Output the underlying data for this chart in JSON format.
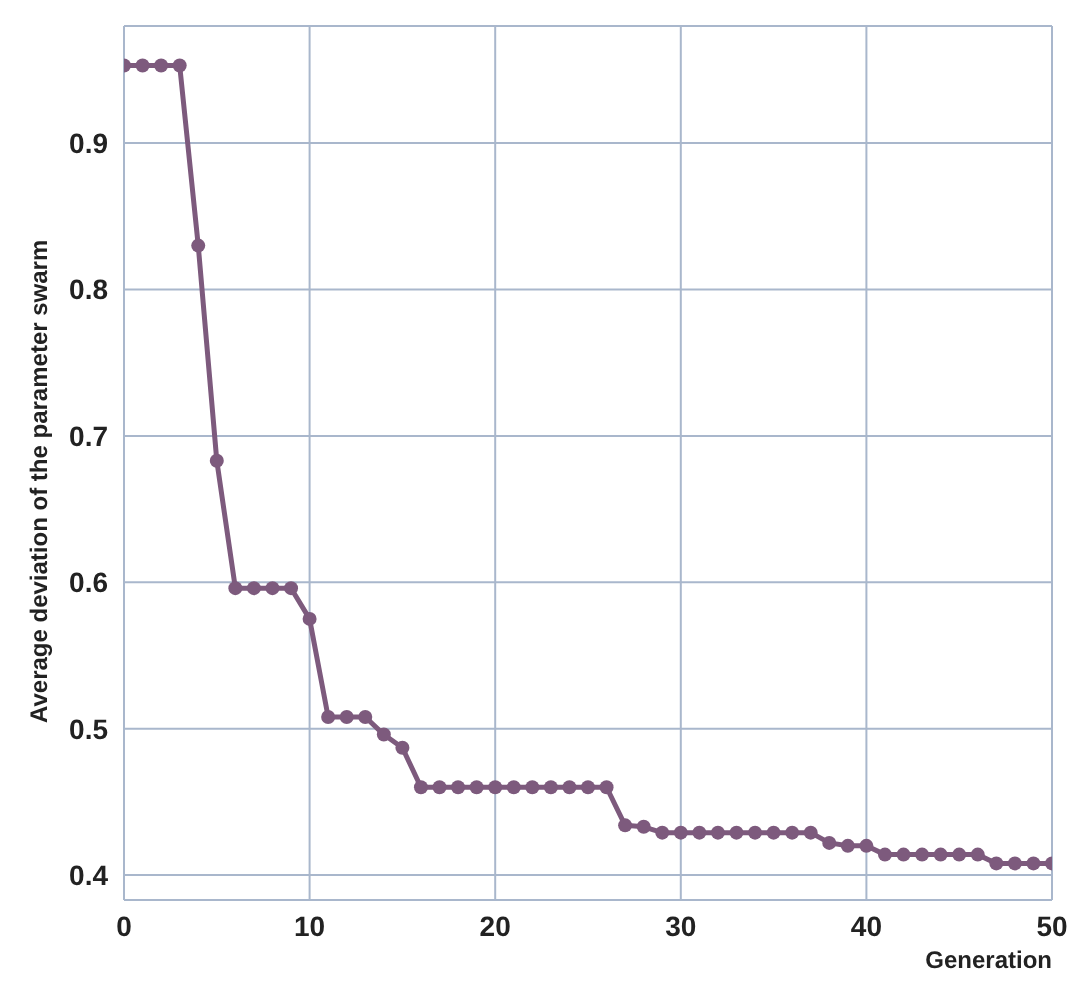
{
  "chart_data": {
    "type": "line",
    "xlabel": "Generation",
    "ylabel": "Average deviation of the parameter swarm",
    "x": [
      0,
      1,
      2,
      3,
      4,
      5,
      6,
      7,
      8,
      9,
      10,
      11,
      12,
      13,
      14,
      15,
      16,
      17,
      18,
      19,
      20,
      21,
      22,
      23,
      24,
      25,
      26,
      27,
      28,
      29,
      30,
      31,
      32,
      33,
      34,
      35,
      36,
      37,
      38,
      39,
      40,
      41,
      42,
      43,
      44,
      45,
      46,
      47,
      48,
      49,
      50
    ],
    "series": [
      {
        "color": "#7d5a7d",
        "values": [
          0.953,
          0.953,
          0.953,
          0.953,
          0.83,
          0.683,
          0.596,
          0.596,
          0.596,
          0.596,
          0.575,
          0.508,
          0.508,
          0.508,
          0.496,
          0.487,
          0.46,
          0.46,
          0.46,
          0.46,
          0.46,
          0.46,
          0.46,
          0.46,
          0.46,
          0.46,
          0.46,
          0.434,
          0.433,
          0.429,
          0.429,
          0.429,
          0.429,
          0.429,
          0.429,
          0.429,
          0.429,
          0.429,
          0.422,
          0.42,
          0.42,
          0.414,
          0.414,
          0.414,
          0.414,
          0.414,
          0.414,
          0.408,
          0.408,
          0.408,
          0.408
        ]
      }
    ],
    "xlim": [
      0,
      50
    ],
    "xticks": [
      0,
      10,
      20,
      30,
      40,
      50
    ],
    "ylim": [
      0.383,
      0.98
    ],
    "yticks": [
      0.4,
      0.5,
      0.6,
      0.7,
      0.8,
      0.9
    ],
    "grid": true,
    "marker": "circle",
    "line_style": "solid"
  }
}
